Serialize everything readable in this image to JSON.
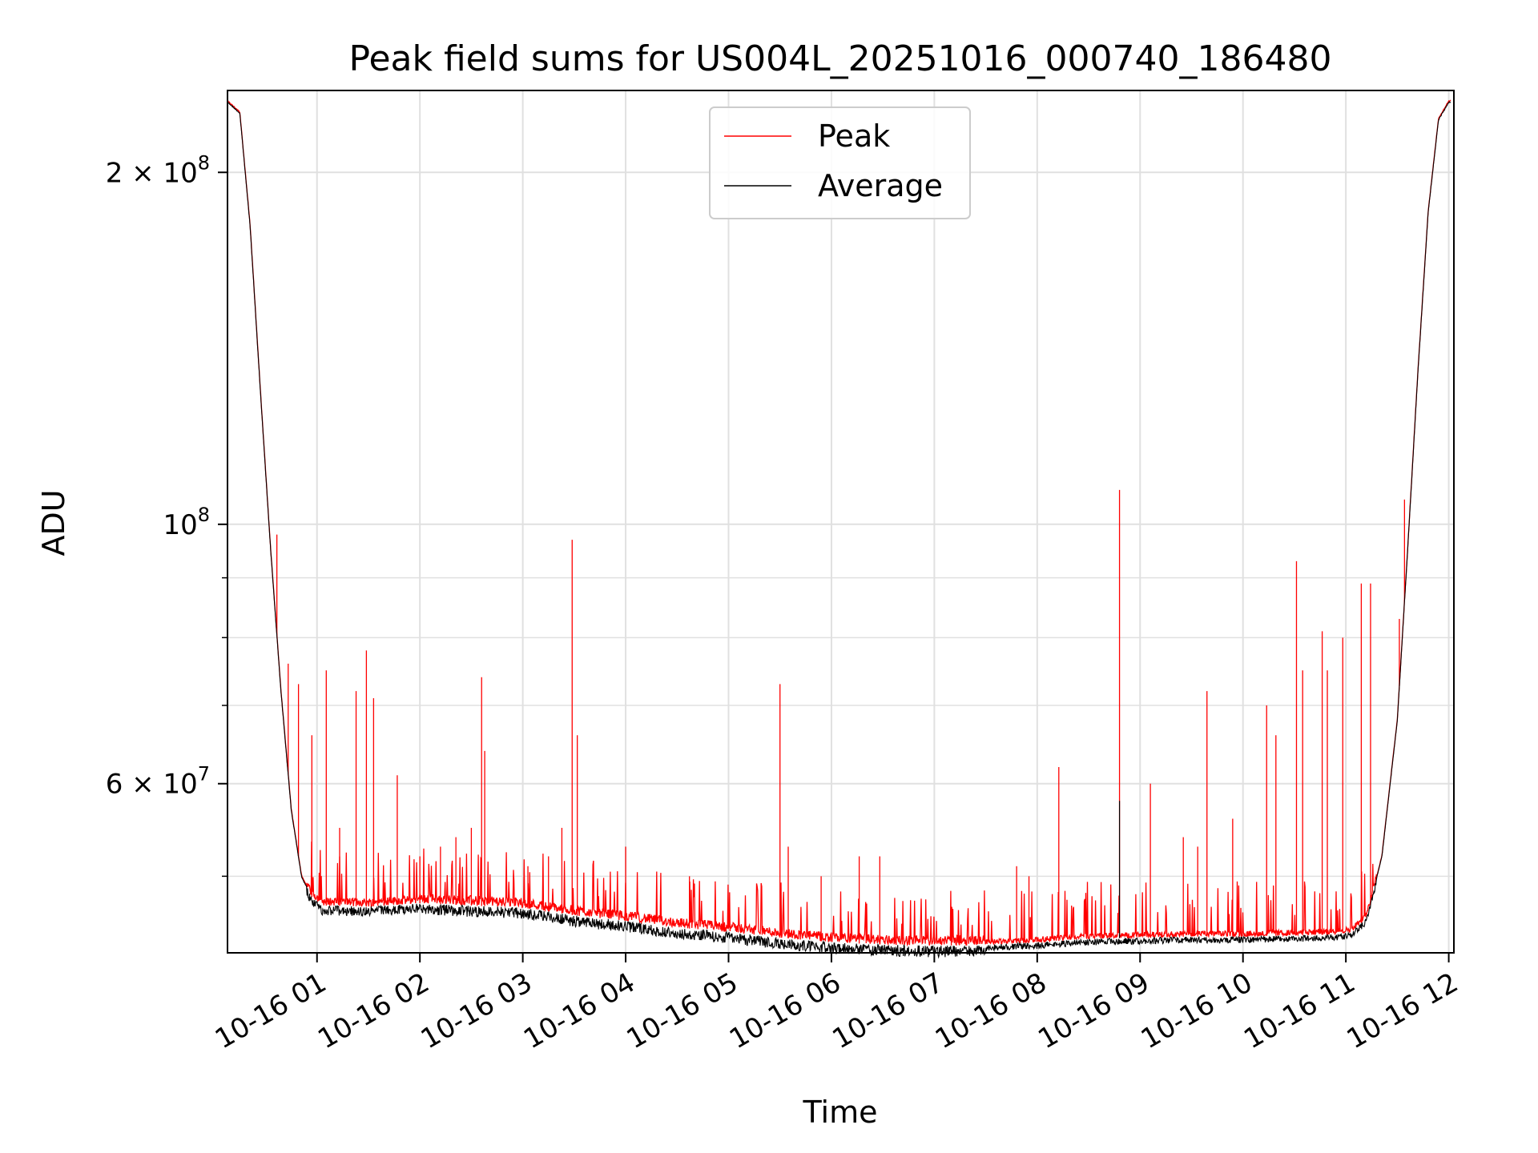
{
  "chart_data": {
    "type": "line",
    "title": "Peak field sums for US004L_20251016_000740_186480",
    "xlabel": "Time",
    "ylabel": "ADU",
    "yscale": "log",
    "ylim": [
      43000000,
      235000000
    ],
    "xlim": [
      0.13,
      12.05
    ],
    "grid": true,
    "legend_position": "top-center",
    "x_ticks": [
      {
        "value": 1,
        "label": "10-16 01"
      },
      {
        "value": 2,
        "label": "10-16 02"
      },
      {
        "value": 3,
        "label": "10-16 03"
      },
      {
        "value": 4,
        "label": "10-16 04"
      },
      {
        "value": 5,
        "label": "10-16 05"
      },
      {
        "value": 6,
        "label": "10-16 06"
      },
      {
        "value": 7,
        "label": "10-16 07"
      },
      {
        "value": 8,
        "label": "10-16 08"
      },
      {
        "value": 9,
        "label": "10-16 09"
      },
      {
        "value": 10,
        "label": "10-16 10"
      },
      {
        "value": 11,
        "label": "10-16 11"
      },
      {
        "value": 12,
        "label": "10-16 12"
      }
    ],
    "y_ticks": [
      {
        "value": 60000000,
        "base": "6",
        "exp": "7"
      },
      {
        "value": 100000000,
        "base": "10",
        "exp": "8"
      },
      {
        "value": 200000000,
        "base": "2",
        "exp": "8"
      }
    ],
    "y_minor_ticks": [
      50000000,
      70000000,
      80000000,
      90000000
    ],
    "legend": [
      "Peak",
      "Average"
    ],
    "colors": {
      "Peak": "#ff0000",
      "Average": "#000000",
      "grid": "#e0e0e0"
    },
    "baseline": {
      "x": [
        0.13,
        0.25,
        0.35,
        0.45,
        0.55,
        0.65,
        0.75,
        0.85,
        0.95,
        1.05,
        1.5,
        2.0,
        2.5,
        3.0,
        3.5,
        4.0,
        4.5,
        5.0,
        5.5,
        6.0,
        6.5,
        7.0,
        7.5,
        8.0,
        8.5,
        9.0,
        9.5,
        10.0,
        10.5,
        10.9,
        11.05,
        11.2,
        11.35,
        11.5,
        11.6,
        11.7,
        11.8,
        11.9,
        12.0
      ],
      "y": [
        230000000,
        225000000,
        180000000,
        130000000,
        95000000,
        72000000,
        57000000,
        50000000,
        48000000,
        47200000,
        47100000,
        47400000,
        47200000,
        47000000,
        46300000,
        45800000,
        45200000,
        44800000,
        44300000,
        43900000,
        43700000,
        43600000,
        43700000,
        43900000,
        44200000,
        44300000,
        44400000,
        44400000,
        44500000,
        44600000,
        44800000,
        46000000,
        52000000,
        68000000,
        95000000,
        135000000,
        185000000,
        222000000,
        230000000
      ]
    },
    "peak_spikes": [
      {
        "x": 0.61,
        "y": 98000000
      },
      {
        "x": 0.72,
        "y": 76000000
      },
      {
        "x": 0.82,
        "y": 73000000
      },
      {
        "x": 0.95,
        "y": 66000000
      },
      {
        "x": 1.09,
        "y": 75000000
      },
      {
        "x": 1.22,
        "y": 55000000
      },
      {
        "x": 1.38,
        "y": 72000000
      },
      {
        "x": 1.48,
        "y": 78000000
      },
      {
        "x": 1.55,
        "y": 71000000
      },
      {
        "x": 1.78,
        "y": 61000000
      },
      {
        "x": 2.0,
        "y": 52000000
      },
      {
        "x": 2.2,
        "y": 53000000
      },
      {
        "x": 2.35,
        "y": 54000000
      },
      {
        "x": 2.5,
        "y": 55000000
      },
      {
        "x": 2.6,
        "y": 74000000
      },
      {
        "x": 2.63,
        "y": 64000000
      },
      {
        "x": 3.05,
        "y": 51000000
      },
      {
        "x": 3.25,
        "y": 52000000
      },
      {
        "x": 3.38,
        "y": 55000000
      },
      {
        "x": 3.48,
        "y": 97000000
      },
      {
        "x": 3.53,
        "y": 66000000
      },
      {
        "x": 4.0,
        "y": 53000000
      },
      {
        "x": 4.62,
        "y": 50000000
      },
      {
        "x": 5.5,
        "y": 73000000
      },
      {
        "x": 5.58,
        "y": 53000000
      },
      {
        "x": 5.9,
        "y": 50000000
      },
      {
        "x": 6.27,
        "y": 52000000
      },
      {
        "x": 6.47,
        "y": 52000000
      },
      {
        "x": 7.8,
        "y": 51000000
      },
      {
        "x": 7.92,
        "y": 50000000
      },
      {
        "x": 8.21,
        "y": 62000000
      },
      {
        "x": 8.8,
        "y": 107000000
      },
      {
        "x": 9.1,
        "y": 60000000
      },
      {
        "x": 9.42,
        "y": 54000000
      },
      {
        "x": 9.56,
        "y": 53000000
      },
      {
        "x": 9.65,
        "y": 72000000
      },
      {
        "x": 9.9,
        "y": 56000000
      },
      {
        "x": 10.23,
        "y": 70000000
      },
      {
        "x": 10.32,
        "y": 66000000
      },
      {
        "x": 10.52,
        "y": 93000000
      },
      {
        "x": 10.58,
        "y": 75000000
      },
      {
        "x": 10.77,
        "y": 81000000
      },
      {
        "x": 10.82,
        "y": 75000000
      },
      {
        "x": 10.97,
        "y": 80000000
      },
      {
        "x": 11.15,
        "y": 89000000
      },
      {
        "x": 11.24,
        "y": 89000000
      },
      {
        "x": 11.52,
        "y": 83000000
      },
      {
        "x": 11.57,
        "y": 105000000
      }
    ],
    "average_spikes": [
      {
        "x": 8.8,
        "y": 58000000
      }
    ]
  }
}
